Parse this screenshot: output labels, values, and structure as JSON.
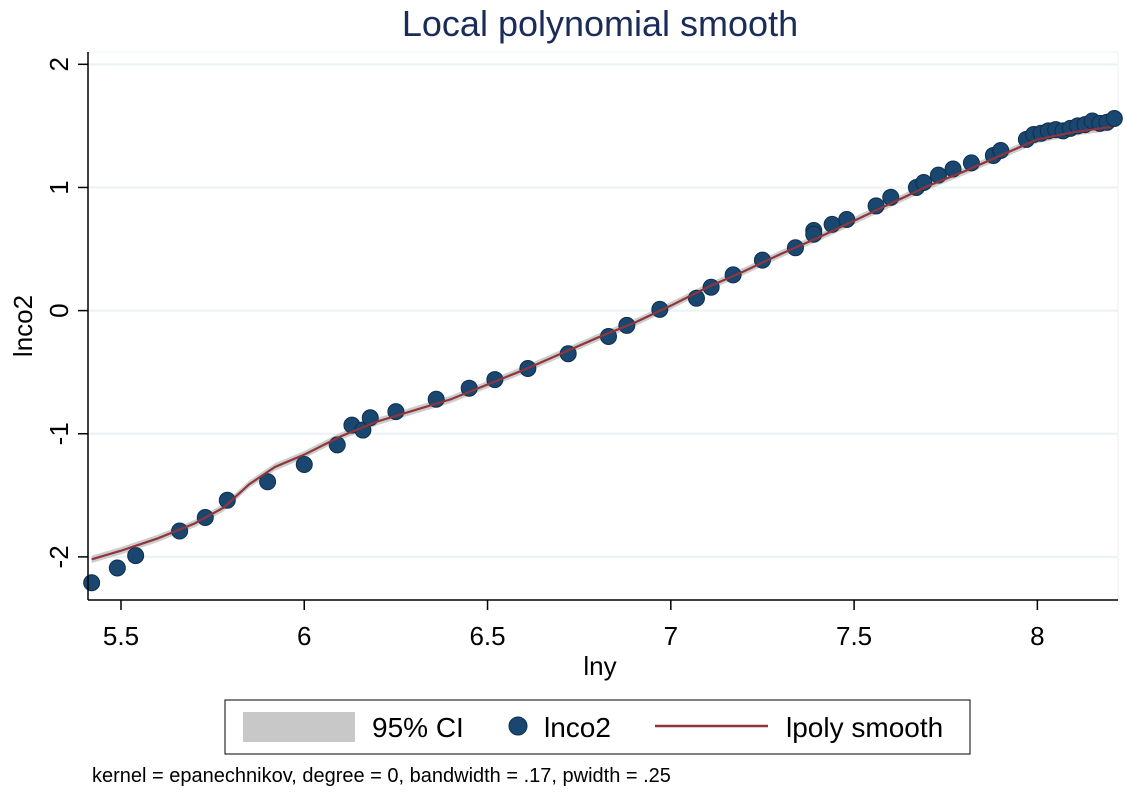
{
  "chart_data": {
    "type": "scatter",
    "title": "Local polynomial smooth",
    "xlabel": "lny",
    "ylabel": "lnco2",
    "xlim": [
      5.41,
      8.22
    ],
    "ylim": [
      -2.35,
      2.1
    ],
    "xticks": [
      5.5,
      6,
      6.5,
      7,
      7.5,
      8
    ],
    "xtick_labels": [
      "5.5",
      "6",
      "6.5",
      "7",
      "7.5",
      "8"
    ],
    "yticks": [
      -2,
      -1,
      0,
      1,
      2
    ],
    "ytick_labels": [
      "-2",
      "-1",
      "0",
      "1",
      "2"
    ],
    "grid": "horizontal",
    "legend_position": "bottom",
    "legend": [
      {
        "label": "95% CI",
        "kind": "band",
        "color": "#c8c8c8"
      },
      {
        "label": "lnco2",
        "kind": "marker",
        "color": "#1a476f"
      },
      {
        "label": "lpoly smooth",
        "kind": "line",
        "color": "#90353b"
      }
    ],
    "note": "kernel = epanechnikov, degree = 0, bandwidth = .17, pwidth = .25",
    "series": [
      {
        "name": "lnco2",
        "kind": "scatter",
        "color": "#1a476f",
        "x": [
          5.42,
          5.49,
          5.54,
          5.66,
          5.73,
          5.79,
          5.9,
          6.0,
          6.09,
          6.13,
          6.16,
          6.18,
          6.25,
          6.36,
          6.45,
          6.52,
          6.61,
          6.72,
          6.83,
          6.88,
          6.97,
          7.07,
          7.11,
          7.17,
          7.25,
          7.34,
          7.39,
          7.39,
          7.44,
          7.48,
          7.56,
          7.6,
          7.67,
          7.69,
          7.73,
          7.77,
          7.82,
          7.88,
          7.9,
          7.97,
          7.99,
          8.01,
          8.03,
          8.05,
          8.07,
          8.09,
          8.11,
          8.13,
          8.15,
          8.17,
          8.19,
          8.21
        ],
        "y": [
          -2.21,
          -2.09,
          -1.99,
          -1.79,
          -1.68,
          -1.54,
          -1.39,
          -1.25,
          -1.09,
          -0.93,
          -0.97,
          -0.87,
          -0.82,
          -0.72,
          -0.63,
          -0.56,
          -0.47,
          -0.35,
          -0.21,
          -0.12,
          0.01,
          0.1,
          0.19,
          0.29,
          0.41,
          0.51,
          0.65,
          0.62,
          0.7,
          0.74,
          0.85,
          0.92,
          1.0,
          1.04,
          1.1,
          1.15,
          1.2,
          1.26,
          1.3,
          1.39,
          1.43,
          1.44,
          1.46,
          1.47,
          1.46,
          1.48,
          1.5,
          1.51,
          1.54,
          1.52,
          1.53,
          1.56
        ]
      },
      {
        "name": "lpoly smooth",
        "kind": "line",
        "color": "#90353b",
        "x": [
          5.42,
          5.5,
          5.6,
          5.7,
          5.78,
          5.85,
          5.92,
          6.0,
          6.1,
          6.2,
          6.3,
          6.4,
          6.5,
          6.6,
          6.7,
          6.8,
          6.9,
          7.0,
          7.1,
          7.2,
          7.3,
          7.4,
          7.5,
          7.6,
          7.7,
          7.8,
          7.9,
          8.0,
          8.1,
          8.2
        ],
        "y": [
          -2.02,
          -1.95,
          -1.85,
          -1.73,
          -1.6,
          -1.41,
          -1.27,
          -1.17,
          -1.02,
          -0.9,
          -0.81,
          -0.72,
          -0.6,
          -0.48,
          -0.35,
          -0.22,
          -0.1,
          0.04,
          0.19,
          0.32,
          0.46,
          0.59,
          0.73,
          0.87,
          1.01,
          1.13,
          1.26,
          1.39,
          1.45,
          1.49
        ]
      }
    ],
    "ci_halfwidth": 0.03
  }
}
